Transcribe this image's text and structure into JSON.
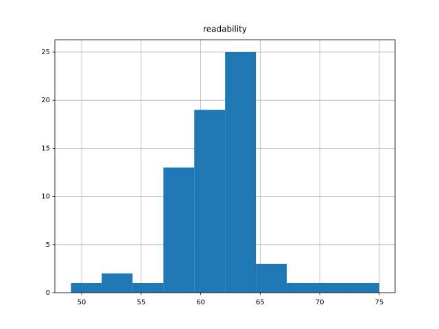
{
  "chart_data": {
    "type": "histogram",
    "title": "readability",
    "bins": [
      49.1,
      51.69,
      54.28,
      56.87,
      59.46,
      62.05,
      64.64,
      67.23,
      69.82,
      72.41,
      75
    ],
    "values": [
      1,
      2,
      1,
      13,
      19,
      25,
      3,
      1,
      1,
      1
    ],
    "color": "#1f77b4",
    "xlim": [
      47.75,
      76.33
    ],
    "xticks": [
      50,
      55,
      60,
      65,
      70,
      75
    ],
    "ylim": [
      0,
      26.28
    ],
    "yticks": [
      0,
      5,
      10,
      15,
      20,
      25
    ],
    "grid": true
  }
}
